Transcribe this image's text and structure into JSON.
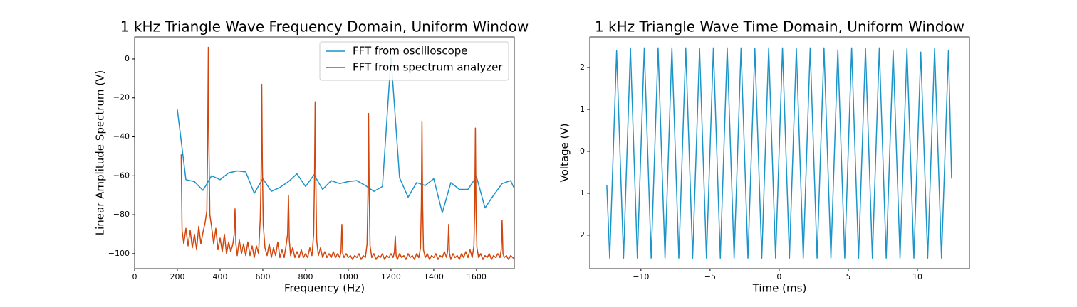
{
  "chart_data": [
    {
      "type": "line",
      "title": "1 kHz Triangle Wave Frequency Domain, Uniform Window",
      "x_label": "Frequency (Hz)",
      "y_label": "Linear Amplitude Spectrum (V)",
      "xlim": [
        0,
        1777
      ],
      "ylim": [
        -107.7,
        11.3
      ],
      "xticks": [
        0,
        200,
        400,
        600,
        800,
        1000,
        1200,
        1400,
        1600
      ],
      "yticks": [
        0,
        {
          "value": -20,
          "label": "−20"
        },
        {
          "value": -40,
          "label": "−40"
        },
        {
          "value": -60,
          "label": "−60"
        },
        {
          "value": -80,
          "label": "−80"
        },
        {
          "value": -100,
          "label": "−100"
        }
      ],
      "legend": "upper right",
      "series": [
        {
          "name": "FFT from oscilloscope",
          "color": "#1a94c9",
          "x": [
            200,
            240,
            280,
            320,
            360,
            400,
            440,
            480,
            520,
            560,
            600,
            640,
            680,
            720,
            760,
            800,
            840,
            880,
            920,
            960,
            1000,
            1040,
            1080,
            1120,
            1160,
            1200,
            1240,
            1280,
            1320,
            1360,
            1400,
            1440,
            1480,
            1520,
            1560,
            1600,
            1640,
            1680,
            1720,
            1760,
            1800
          ],
          "values": [
            -26,
            -62,
            -63,
            -67.5,
            -60,
            -62,
            -58.5,
            -57.5,
            -58,
            -69,
            -61.5,
            -68,
            -66,
            -63,
            -59,
            -65.5,
            -59.5,
            -67,
            -62.5,
            -64,
            -63,
            -62.5,
            -65,
            -68,
            -65.5,
            1,
            -61,
            -71,
            -63.5,
            -65,
            -61.5,
            -79,
            -63.5,
            -67,
            -67,
            -60.5,
            -76.5,
            -70,
            -64,
            -62.5,
            -72
          ]
        },
        {
          "name": "FFT from spectrum analyzer",
          "color": "#d2460c",
          "x": [
            218,
            222,
            230,
            240,
            250,
            260,
            270,
            280,
            290,
            300,
            310,
            320,
            330,
            338,
            342,
            345,
            348,
            352,
            360,
            370,
            380,
            390,
            400,
            410,
            420,
            430,
            440,
            450,
            460,
            466,
            470,
            474,
            480,
            490,
            500,
            510,
            520,
            530,
            540,
            550,
            560,
            570,
            580,
            588,
            592,
            595,
            598,
            602,
            610,
            620,
            630,
            640,
            650,
            660,
            670,
            680,
            690,
            700,
            710,
            716,
            720,
            724,
            730,
            740,
            750,
            760,
            770,
            780,
            790,
            800,
            810,
            820,
            830,
            838,
            842,
            845,
            848,
            852,
            860,
            870,
            880,
            890,
            900,
            910,
            920,
            930,
            940,
            950,
            960,
            966,
            970,
            974,
            980,
            990,
            1000,
            1010,
            1020,
            1030,
            1040,
            1050,
            1060,
            1070,
            1080,
            1088,
            1092,
            1095,
            1098,
            1102,
            1110,
            1120,
            1130,
            1140,
            1150,
            1160,
            1170,
            1180,
            1190,
            1200,
            1210,
            1216,
            1220,
            1224,
            1230,
            1240,
            1250,
            1260,
            1270,
            1280,
            1290,
            1300,
            1310,
            1320,
            1330,
            1338,
            1342,
            1345,
            1348,
            1352,
            1360,
            1370,
            1380,
            1390,
            1400,
            1410,
            1420,
            1430,
            1440,
            1450,
            1460,
            1466,
            1470,
            1474,
            1480,
            1490,
            1500,
            1510,
            1520,
            1530,
            1540,
            1550,
            1560,
            1570,
            1580,
            1588,
            1592,
            1595,
            1598,
            1602,
            1610,
            1620,
            1630,
            1640,
            1650,
            1660,
            1670,
            1680,
            1690,
            1700,
            1710,
            1716,
            1720,
            1724,
            1730,
            1740,
            1750,
            1760,
            1770,
            1777
          ],
          "values": [
            -49,
            -88,
            -95,
            -87,
            -96,
            -88,
            -97,
            -90,
            -98,
            -86,
            -95,
            -89,
            -84,
            -78,
            -40,
            6,
            -45,
            -80,
            -86,
            -95,
            -87,
            -98,
            -92,
            -99,
            -90,
            -100,
            -94,
            -99,
            -95,
            -90,
            -77,
            -95,
            -101,
            -93,
            -100,
            -95,
            -101,
            -94,
            -101,
            -96,
            -102,
            -96,
            -100,
            -82,
            -60,
            -13,
            -55,
            -85,
            -97,
            -101,
            -95,
            -102,
            -97,
            -101,
            -94,
            -102,
            -98,
            -102,
            -95,
            -90,
            -70,
            -93,
            -101,
            -97,
            -102,
            -99,
            -102,
            -98,
            -102,
            -100,
            -102,
            -97,
            -101,
            -90,
            -60,
            -22,
            -62,
            -93,
            -101,
            -97,
            -102,
            -99,
            -102,
            -100,
            -102,
            -99,
            -102,
            -100,
            -102,
            -99,
            -85,
            -100,
            -102,
            -100,
            -102,
            -101,
            -103,
            -101,
            -102,
            -100,
            -103,
            -101,
            -102,
            -95,
            -70,
            -28,
            -70,
            -96,
            -102,
            -100,
            -103,
            -101,
            -102,
            -100,
            -103,
            -101,
            -102,
            -100,
            -102,
            -99,
            -91,
            -101,
            -103,
            -100,
            -102,
            -101,
            -103,
            -100,
            -102,
            -101,
            -103,
            -100,
            -102,
            -97,
            -75,
            -32,
            -75,
            -98,
            -102,
            -100,
            -103,
            -101,
            -102,
            -100,
            -103,
            -101,
            -102,
            -99,
            -102,
            -98,
            -85,
            -100,
            -103,
            -100,
            -102,
            -101,
            -103,
            -100,
            -102,
            -99,
            -102,
            -98,
            -102,
            -96,
            -75,
            -35.5,
            -78,
            -97,
            -102,
            -100,
            -103,
            -101,
            -102,
            -100,
            -103,
            -101,
            -102,
            -100,
            -102,
            -98,
            -83,
            -100,
            -102,
            -101,
            -103,
            -101,
            -102,
            -103
          ]
        }
      ]
    },
    {
      "type": "line",
      "title": "1 kHz Triangle Wave Time Domain, Uniform Window",
      "x_label": "Time (ms)",
      "y_label": "Voltage (V)",
      "xlim": [
        -13.7,
        13.76
      ],
      "ylim": [
        -2.8,
        2.73
      ],
      "xticks": [
        {
          "value": -10,
          "label": "−10"
        },
        {
          "value": -5,
          "label": "−5"
        },
        0,
        5,
        10
      ],
      "yticks": [
        {
          "value": -2,
          "label": "−2"
        },
        {
          "value": -1,
          "label": "−1"
        },
        0,
        1,
        2
      ],
      "series": [
        {
          "color": "#1a94c9",
          "x": [
            -12.47,
            -12.26,
            -11.76,
            -11.26,
            -10.76,
            -10.26,
            -9.76,
            -9.26,
            -8.76,
            -8.26,
            -7.76,
            -7.26,
            -6.76,
            -6.26,
            -5.76,
            -5.26,
            -4.76,
            -4.26,
            -3.76,
            -3.26,
            -2.76,
            -2.26,
            -1.76,
            -1.26,
            -0.76,
            -0.26,
            0.24,
            0.74,
            1.24,
            1.74,
            2.24,
            2.74,
            3.24,
            3.74,
            4.24,
            4.74,
            5.24,
            5.74,
            6.24,
            6.74,
            7.24,
            7.74,
            8.24,
            8.74,
            9.24,
            9.74,
            10.24,
            10.74,
            11.24,
            11.74,
            12.24,
            12.47
          ],
          "values": [
            -0.8,
            -2.55,
            2.4,
            -2.55,
            2.47,
            -2.55,
            2.47,
            -2.55,
            2.47,
            -2.55,
            2.47,
            -2.55,
            2.47,
            -2.55,
            2.45,
            -2.55,
            2.47,
            -2.55,
            2.47,
            -2.55,
            2.47,
            -2.55,
            2.45,
            -2.55,
            2.47,
            -2.55,
            2.47,
            -2.55,
            2.45,
            -2.55,
            2.47,
            -2.55,
            2.47,
            -2.55,
            2.42,
            -2.55,
            2.47,
            -2.55,
            2.45,
            -2.55,
            2.47,
            -2.55,
            2.4,
            -2.55,
            2.45,
            -2.55,
            2.37,
            -2.55,
            2.45,
            -2.55,
            2.4,
            -0.65
          ]
        }
      ]
    }
  ]
}
